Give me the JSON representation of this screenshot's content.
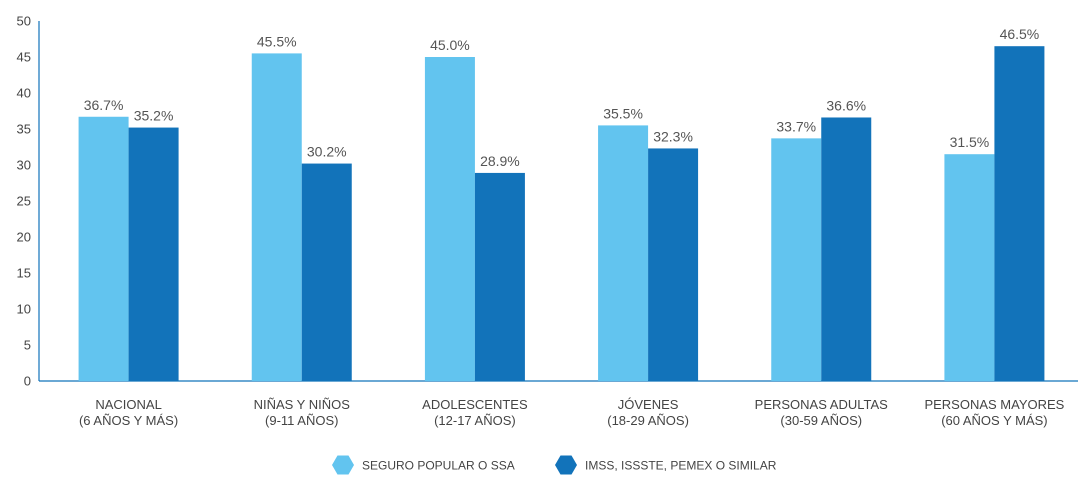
{
  "chart_data": {
    "type": "bar",
    "categories": [
      [
        "NACIONAL",
        "(6 AÑOS Y MÁS)"
      ],
      [
        "NIÑAS Y NIÑOS",
        "(9-11 AÑOS)"
      ],
      [
        "ADOLESCENTES",
        "(12-17 AÑOS)"
      ],
      [
        "JÓVENES",
        "(18-29 AÑOS)"
      ],
      [
        "PERSONAS ADULTAS",
        "(30-59 AÑOS)"
      ],
      [
        "PERSONAS MAYORES",
        "(60 AÑOS Y MÁS)"
      ]
    ],
    "series": [
      {
        "name": "SEGURO POPULAR O SSA",
        "color": "#62C4EF",
        "values": [
          36.7,
          45.5,
          45.0,
          35.5,
          33.7,
          31.5
        ],
        "labels": [
          "36.7%",
          "45.5%",
          "45.0%",
          "35.5%",
          "33.7%",
          "31.5%"
        ]
      },
      {
        "name": "IMSS, ISSSTE, PEMEX O SIMILAR",
        "color": "#1273BA",
        "values": [
          35.2,
          30.2,
          28.9,
          32.3,
          36.6,
          46.5
        ],
        "labels": [
          "35.2%",
          "30.2%",
          "28.9%",
          "32.3%",
          "36.6%",
          "46.5%"
        ]
      }
    ],
    "yticks": [
      "0",
      "5",
      "10",
      "15",
      "20",
      "25",
      "30",
      "35",
      "40",
      "45",
      "50"
    ],
    "ylim": [
      0,
      50
    ],
    "grid": false,
    "legend_position": "bottom-center",
    "axis_color": "#1273BA"
  }
}
